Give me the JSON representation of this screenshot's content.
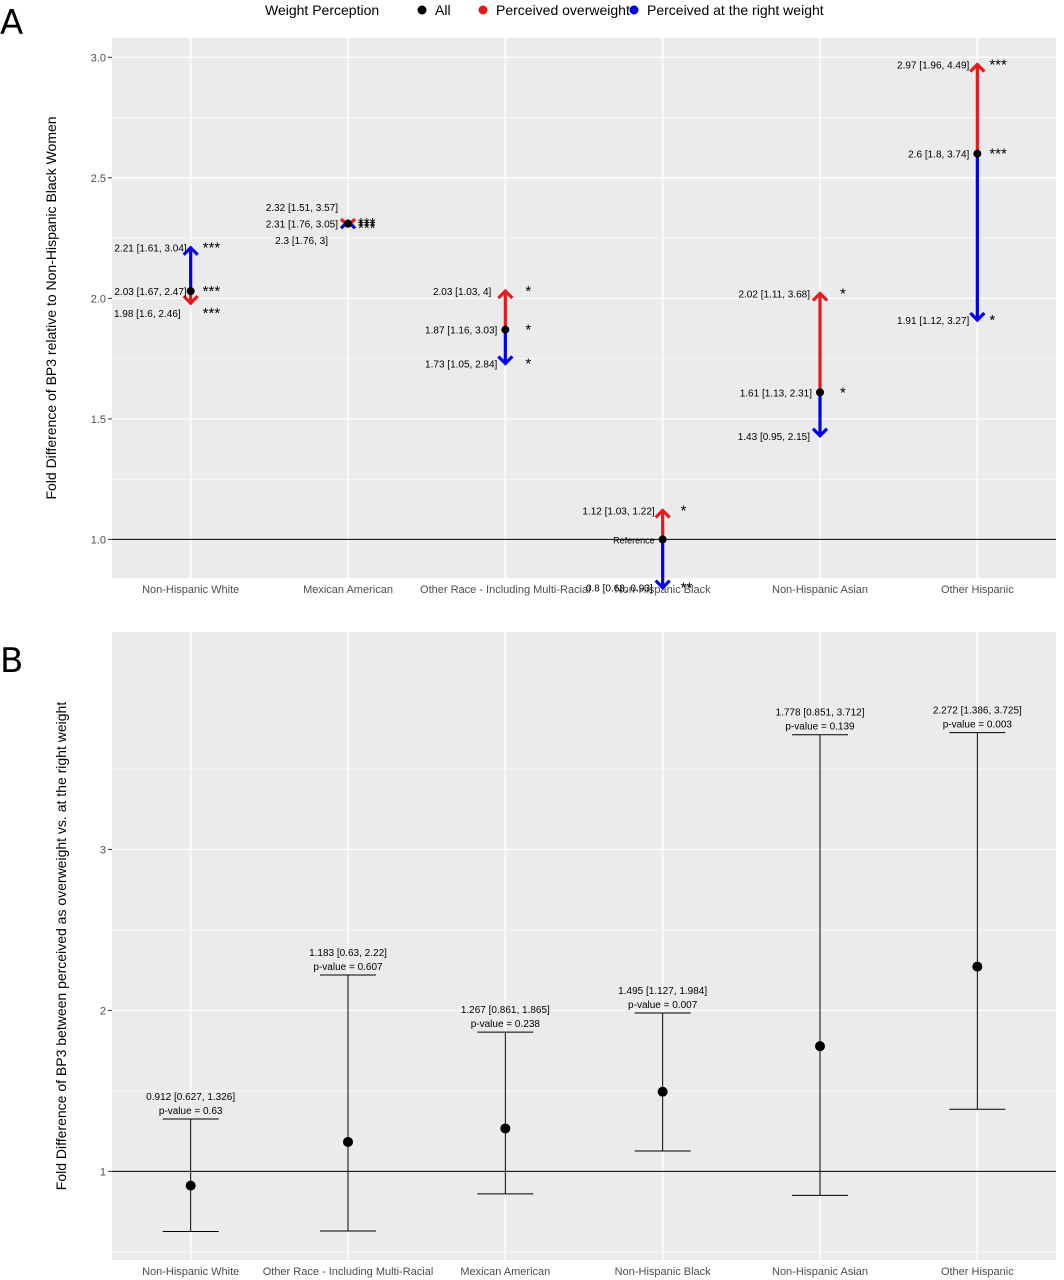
{
  "panel_labels": {
    "a": "A",
    "b": "B"
  },
  "legend": {
    "title": "Weight Perception",
    "items": [
      {
        "label": "All",
        "color": "#000000"
      },
      {
        "label": "Perceived overweight",
        "color": "#e41a1c"
      },
      {
        "label": "Perceived at the right weight",
        "color": "#0000ee"
      }
    ]
  },
  "chart_data": [
    {
      "id": "A",
      "type": "scatter",
      "ylabel": "Fold Difference of BP3 relative to Non-Hispanic Black Women",
      "xlabel": "",
      "ylim": [
        0.84,
        3.08
      ],
      "yticks": [
        "1.0",
        "1.5",
        "2.0",
        "2.5",
        "3.0"
      ],
      "ytick_values": [
        1.0,
        1.5,
        2.0,
        2.5,
        3.0
      ],
      "reference_line": 1.0,
      "grid": true,
      "categories": [
        "Non-Hispanic White",
        "Mexican American",
        "Other Race - Including Multi-Racial",
        "Non-Hispanic Black",
        "Non-Hispanic Asian",
        "Other Hispanic"
      ],
      "series": [
        {
          "name": "All",
          "values": [
            2.03,
            2.31,
            1.87,
            1.0,
            1.61,
            2.6
          ],
          "labels": [
            "2.03 [1.67, 2.47]",
            "2.31 [1.76, 3.05]",
            "1.87 [1.16, 3.03]",
            "Reference",
            "1.61 [1.13, 2.31]",
            "2.6 [1.8, 3.74]"
          ],
          "stars": [
            "***",
            "***",
            "*",
            "",
            "*",
            "***"
          ]
        },
        {
          "name": "Perceived overweight",
          "values": [
            1.98,
            2.3,
            2.03,
            1.12,
            2.02,
            2.97
          ],
          "labels": [
            "1.98 [1.6, 2.46]",
            "2.3 [1.76, 3]",
            "2.03 [1.03, 4]",
            "1.12 [1.03, 1.22]",
            "2.02 [1.11, 3.68]",
            "2.97 [1.96, 4.49]"
          ],
          "stars": [
            "***",
            "***",
            "*",
            "*",
            "*",
            "***"
          ]
        },
        {
          "name": "Perceived at the right weight",
          "values": [
            2.21,
            2.32,
            1.73,
            0.8,
            1.43,
            1.91
          ],
          "labels": [
            "2.21 [1.61, 3.04]",
            "2.32 [1.51, 3.57]",
            "1.73 [1.05, 2.84]",
            "0.8 [0.68, 0.93]",
            "1.43 [0.95, 2.15]",
            "1.91 [1.12, 3.27]"
          ],
          "stars": [
            "***",
            "***",
            "*",
            "**",
            "",
            "*"
          ]
        }
      ]
    },
    {
      "id": "B",
      "type": "scatter",
      "ylabel": "Fold Difference of BP3 between perceived as overweight vs. at the right weight",
      "xlabel": "",
      "ylim": [
        0.45,
        4.35
      ],
      "yticks": [
        "1",
        "2",
        "3"
      ],
      "ytick_values": [
        1,
        2,
        3
      ],
      "reference_line": 1,
      "grid": true,
      "categories": [
        "Non-Hispanic White",
        "Other Race - Including Multi-Racial",
        "Mexican American",
        "Non-Hispanic Black",
        "Non-Hispanic Asian",
        "Other Hispanic"
      ],
      "values": [
        0.912,
        1.183,
        1.267,
        1.495,
        1.778,
        2.272
      ],
      "ci_low": [
        0.627,
        0.63,
        0.861,
        1.127,
        0.851,
        1.386
      ],
      "ci_high": [
        1.326,
        2.22,
        1.865,
        1.984,
        3.712,
        3.725
      ],
      "labels": [
        "0.912 [0.627, 1.326]",
        "1.183 [0.63, 2.22]",
        "1.267 [0.861, 1.865]",
        "1.495 [1.127, 1.984]",
        "1.778 [0.851, 3.712]",
        "2.272 [1.386, 3.725]"
      ],
      "pvalues": [
        "p-value = 0.63",
        "p-value = 0.607",
        "p-value = 0.238",
        "p-value = 0.007",
        "p-value = 0.139",
        "p-value = 0.003"
      ]
    }
  ]
}
